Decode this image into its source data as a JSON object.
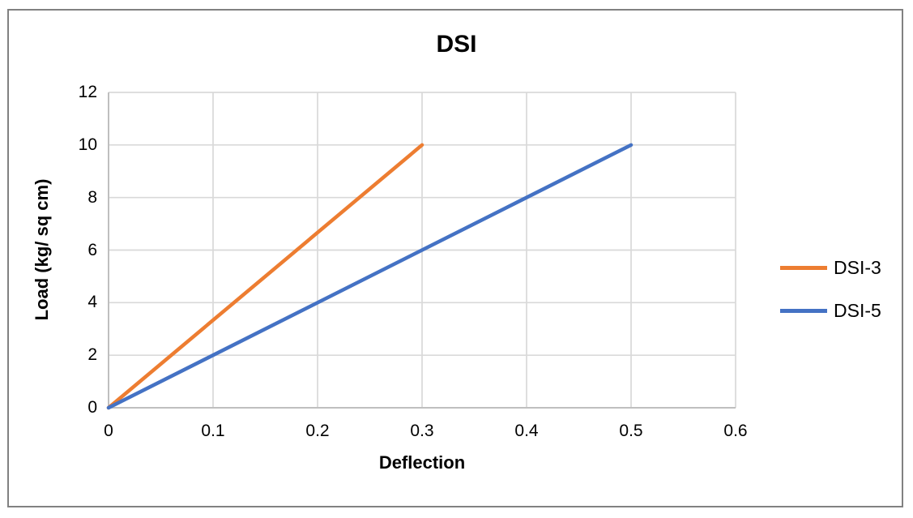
{
  "chart_data": {
    "type": "line",
    "title": "DSI",
    "xlabel": "Deflection",
    "ylabel": "Load (kg/ sq cm)",
    "xlim": [
      0,
      0.6
    ],
    "ylim": [
      0,
      12
    ],
    "x_ticks": [
      0,
      0.1,
      0.2,
      0.3,
      0.4,
      0.5,
      0.6
    ],
    "y_ticks": [
      0,
      2,
      4,
      6,
      8,
      10,
      12
    ],
    "grid": "both",
    "legend_position": "right",
    "series": [
      {
        "name": "DSI-3",
        "color": "#ED7D31",
        "points": [
          [
            0,
            0
          ],
          [
            0.3,
            10
          ]
        ]
      },
      {
        "name": "DSI-5",
        "color": "#4472C4",
        "points": [
          [
            0,
            0
          ],
          [
            0.5,
            10
          ]
        ]
      }
    ],
    "colors": {
      "gridline": "#D9D9D9",
      "axis_line": "#BFBFBF",
      "text": "#000000",
      "frame_border": "#818181",
      "background": "#FFFFFF"
    }
  }
}
